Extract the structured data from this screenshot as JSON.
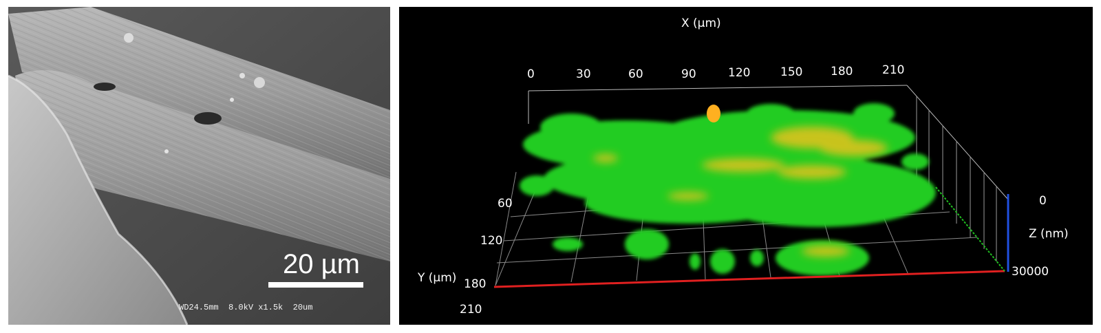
{
  "sem_image": {
    "scale_bar_label": "20 µm",
    "metadata_line": "WD24.5mm  8.0kV x1.5k  20um"
  },
  "clsm_image": {
    "x_axis_title": "X (µm)",
    "x_ticks": [
      "0",
      "30",
      "60",
      "90",
      "120",
      "150",
      "180",
      "210"
    ],
    "y_axis_title": "Y (µm)",
    "y_ticks": [
      "60",
      "120",
      "180",
      "210"
    ],
    "z_axis_title": "Z (nm)",
    "z_ticks": [
      "0",
      "30000"
    ],
    "colors": {
      "background": "#000000",
      "biofilm_green": "#22cc22",
      "biofilm_yellow": "#e6c21a",
      "x_axis_line": "#e02020",
      "y_axis_line": "#20c020",
      "z_axis_line": "#2050e0"
    }
  }
}
